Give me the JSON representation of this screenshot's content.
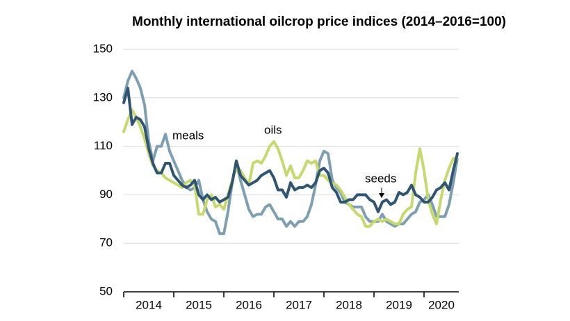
{
  "chart_data": {
    "type": "line",
    "title": "Monthly international oilcrop price indices (2014–2016=100)",
    "categories": [
      "2014",
      null,
      null,
      null,
      null,
      null,
      null,
      null,
      null,
      null,
      null,
      null,
      "2015",
      null,
      null,
      null,
      null,
      null,
      null,
      null,
      null,
      null,
      null,
      null,
      "2016",
      null,
      null,
      null,
      null,
      null,
      null,
      null,
      null,
      null,
      null,
      null,
      "2017",
      null,
      null,
      null,
      null,
      null,
      null,
      null,
      null,
      null,
      null,
      null,
      "2018",
      null,
      null,
      null,
      null,
      null,
      null,
      null,
      null,
      null,
      null,
      null,
      "2019",
      null,
      null,
      null,
      null,
      null,
      null,
      null,
      null,
      null,
      null,
      null,
      "2020",
      null,
      null,
      null,
      null,
      null,
      null,
      null,
      null
    ],
    "series": [
      {
        "name": "meals",
        "color": "#7e9fb1",
        "values": [
          130,
          137,
          141,
          138,
          134,
          127,
          112,
          104,
          110,
          110,
          115,
          108,
          104,
          100,
          96,
          93,
          92,
          93,
          96,
          88,
          83,
          80,
          79,
          74,
          74,
          83,
          95,
          103,
          96,
          90,
          84,
          81,
          82,
          82,
          85,
          86,
          83,
          80,
          80,
          77,
          79,
          77,
          79,
          79,
          81,
          86,
          94,
          104,
          108,
          107,
          96,
          93,
          91,
          87,
          86,
          85,
          85,
          85,
          81,
          79,
          79,
          79,
          82,
          79,
          78,
          77,
          78,
          78,
          80,
          82,
          83,
          87,
          88,
          90,
          86,
          81,
          81,
          81,
          86,
          95,
          105
        ]
      },
      {
        "name": "oils",
        "color": "#c6d96f",
        "values": [
          116,
          121,
          125,
          122,
          118,
          113,
          107,
          102,
          100,
          99,
          97,
          96,
          95,
          94,
          93,
          95,
          96,
          94,
          82,
          82,
          88,
          90,
          85,
          86,
          84,
          90,
          96,
          101,
          100,
          97,
          94,
          103,
          104,
          103,
          106,
          110,
          112,
          109,
          104,
          98,
          102,
          97,
          97,
          100,
          104,
          103,
          104,
          98,
          98,
          96,
          95,
          94,
          92,
          89,
          86,
          84,
          82,
          81,
          77,
          77,
          79,
          80,
          79,
          80,
          79,
          78,
          78,
          82,
          84,
          85,
          99,
          109,
          100,
          88,
          82,
          78,
          88,
          96,
          101,
          105,
          105
        ]
      },
      {
        "name": "seeds",
        "color": "#2f5570",
        "values": [
          128,
          134,
          119,
          122,
          121,
          118,
          109,
          103,
          99,
          99,
          103,
          103,
          98,
          96,
          94,
          93,
          94,
          96,
          90,
          88,
          90,
          88,
          89,
          87,
          88,
          89,
          95,
          104,
          98,
          96,
          94,
          95,
          96,
          98,
          99,
          100,
          97,
          92,
          92,
          89,
          95,
          92,
          93,
          93,
          94,
          93,
          95,
          100,
          101,
          99,
          93,
          91,
          87,
          87,
          88,
          88,
          90,
          90,
          90,
          88,
          87,
          83,
          87,
          88,
          86,
          87,
          91,
          90,
          91,
          94,
          90,
          89,
          87,
          87,
          89,
          92,
          93,
          95,
          92,
          100,
          107
        ]
      }
    ],
    "ylim": [
      50,
      150
    ],
    "yticks": [
      50,
      70,
      90,
      110,
      130,
      150
    ],
    "grid": true
  }
}
